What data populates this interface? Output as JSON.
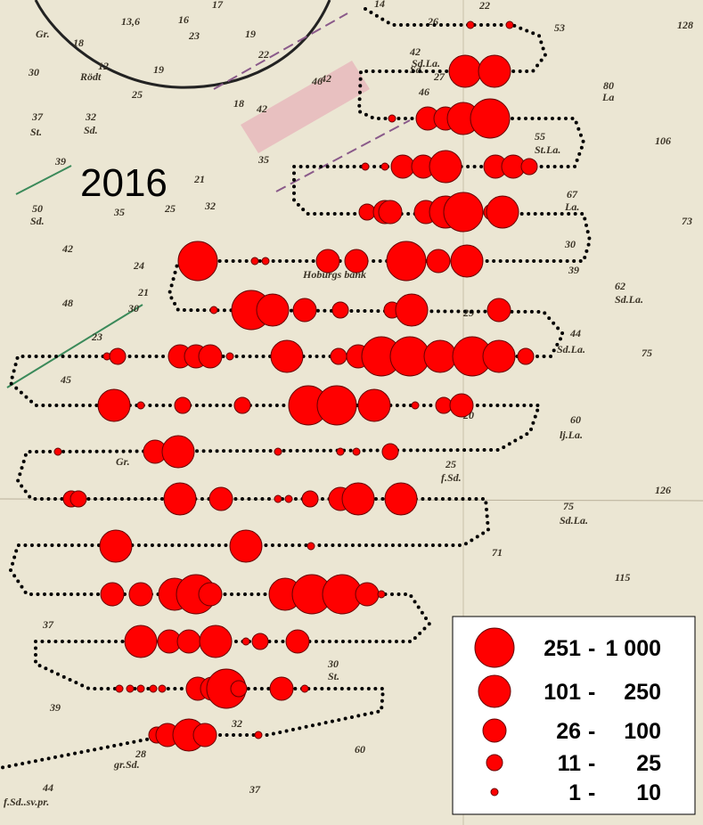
{
  "year": "2016",
  "legend": [
    {
      "from": "251",
      "to": "1 000"
    },
    {
      "from": "101",
      "to": "250"
    },
    {
      "from": "26",
      "to": "100"
    },
    {
      "from": "11",
      "to": "25"
    },
    {
      "from": "1",
      "to": "10"
    }
  ],
  "soundings": [
    "14",
    "22",
    "53",
    "128",
    "Gr.",
    "18",
    "13,6",
    "16",
    "17",
    "19",
    "23",
    "22",
    "30",
    "Rödt",
    "12",
    "19",
    "25",
    "37",
    "32",
    "St.",
    "Sd.",
    "42",
    "Sd.",
    "46",
    "18",
    "42",
    "35",
    "39",
    "21",
    "32",
    "50",
    "Sd.",
    "35",
    "25",
    "42",
    "24",
    "48",
    "21",
    "30",
    "23",
    "45",
    "42",
    "26",
    "Sd.La.",
    "27",
    "46",
    "80",
    "La",
    "106",
    "55",
    "St.La.",
    "67",
    "La.",
    "73",
    "30",
    "39",
    "62",
    "Sd.La.",
    "44",
    "Sd.La.",
    "75",
    "60",
    "lj.La.",
    "25",
    "f.Sd.",
    "126",
    "75",
    "Sd.La.",
    "71",
    "115",
    "37",
    "39",
    "30",
    "St.",
    "28",
    "gr.Sd.",
    "32",
    "60",
    "44",
    "f.Sd..sv.pr.",
    "37",
    "Hoburgs bank",
    "29",
    "20",
    "Gr."
  ]
}
